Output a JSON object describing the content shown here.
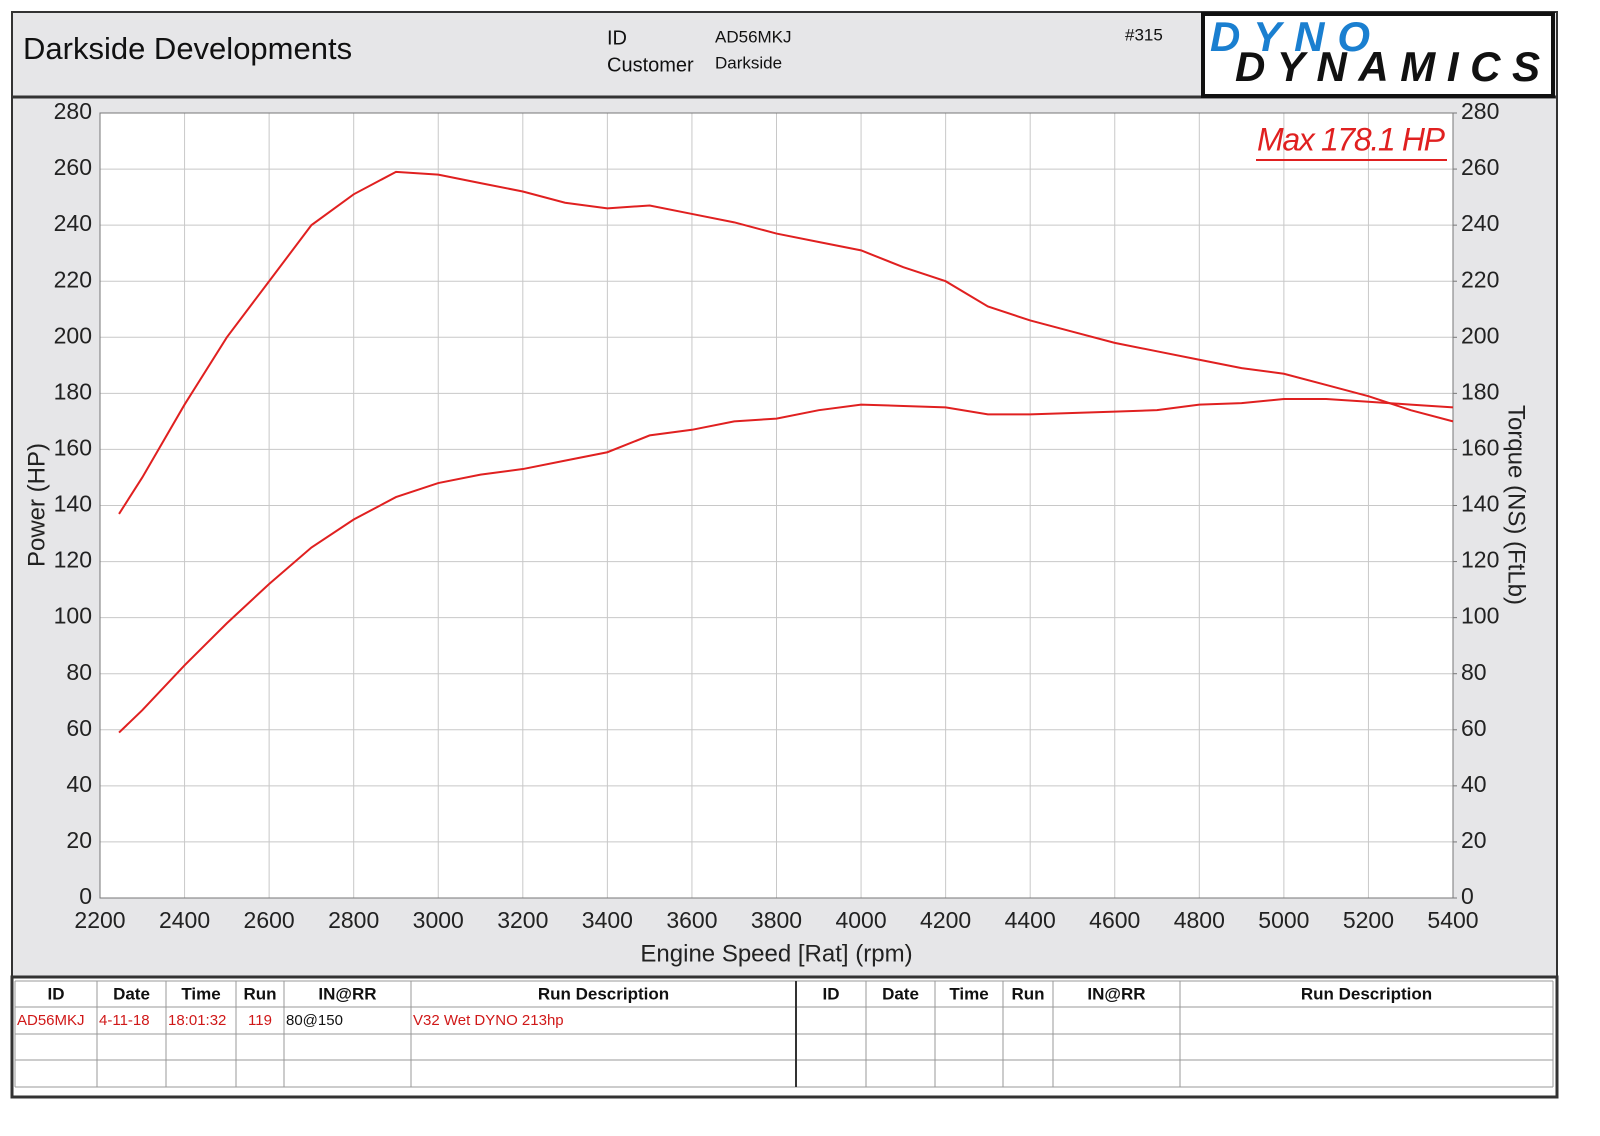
{
  "header": {
    "title": "Darkside Developments",
    "id_label": "ID",
    "id_value": "AD56MKJ",
    "customer_label": "Customer",
    "customer_value": "Darkside",
    "run_number": "#315",
    "logo_top": "DYNO",
    "logo_bottom": "DYNAMICS"
  },
  "chart_data": {
    "type": "line",
    "annotation": "Max 178.1 HP",
    "x_label": "Engine Speed [Rat] (rpm)",
    "y_label": "Power (HP)",
    "y2_label": "Torque (NS) (FtLb)",
    "x": [
      2245,
      2300,
      2400,
      2500,
      2600,
      2700,
      2800,
      2900,
      3000,
      3100,
      3200,
      3300,
      3400,
      3500,
      3600,
      3700,
      3800,
      3900,
      4000,
      4100,
      4200,
      4300,
      4400,
      4500,
      4600,
      4700,
      4800,
      4900,
      5000,
      5100,
      5200,
      5300,
      5400
    ],
    "series": [
      {
        "color": "#e02020",
        "values": [
          59,
          67,
          83,
          98,
          112,
          125,
          135,
          143,
          148,
          151,
          153,
          156,
          159,
          165,
          167,
          170,
          171,
          174,
          176,
          175.5,
          175,
          172.5,
          172.5,
          173,
          173.5,
          174,
          176,
          176.5,
          178,
          178,
          177,
          176,
          175
        ]
      },
      {
        "color": "#e02020",
        "axis": "y2",
        "values": [
          137,
          150,
          176,
          200,
          220,
          240,
          251,
          259,
          258,
          255,
          252,
          248,
          246,
          247,
          244,
          241,
          237,
          234,
          231,
          225,
          220,
          211,
          206,
          202,
          198,
          195,
          192,
          189,
          187,
          183,
          179,
          174,
          170
        ]
      }
    ],
    "xlim": [
      2200,
      5400
    ],
    "xticks": [
      2200,
      2400,
      2600,
      2800,
      3000,
      3200,
      3400,
      3600,
      3800,
      4000,
      4200,
      4400,
      4600,
      4800,
      5000,
      5200,
      5400
    ],
    "ylim": [
      0,
      280
    ],
    "yticks": [
      0,
      20,
      40,
      60,
      80,
      100,
      120,
      140,
      160,
      180,
      200,
      220,
      240,
      260,
      280
    ],
    "y2lim": [
      0,
      280
    ],
    "y2ticks": [
      0,
      20,
      40,
      60,
      80,
      100,
      120,
      140,
      160,
      180,
      200,
      220,
      240,
      260,
      280
    ],
    "grid": true
  },
  "table": {
    "header": [
      "ID",
      "Date",
      "Time",
      "Run",
      "IN@RR",
      "Run Description",
      "ID",
      "Date",
      "Time",
      "Run",
      "IN@RR",
      "Run Description"
    ],
    "rows": [
      [
        "AD56MKJ",
        "4-11-18",
        "18:01:32",
        "119",
        "80@150",
        "V32 Wet DYNO 213hp"
      ]
    ]
  }
}
